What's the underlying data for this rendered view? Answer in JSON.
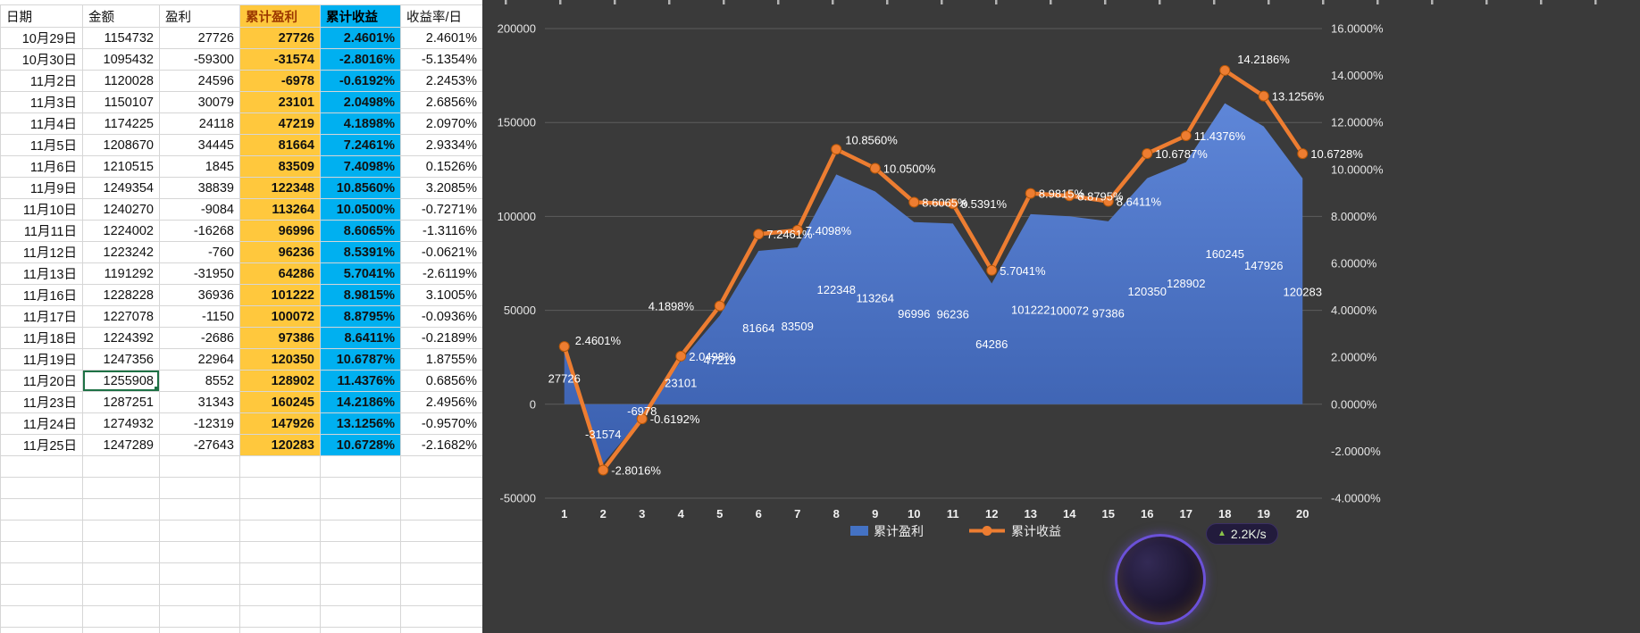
{
  "table": {
    "headers": [
      "日期",
      "金额",
      "盈利",
      "累计盈利",
      "累计收益",
      "收益率/日"
    ],
    "rows": [
      [
        "10月29日",
        "1154732",
        "27726",
        "27726",
        "2.4601%",
        "2.4601%"
      ],
      [
        "10月30日",
        "1095432",
        "-59300",
        "-31574",
        "-2.8016%",
        "-5.1354%"
      ],
      [
        "11月2日",
        "1120028",
        "24596",
        "-6978",
        "-0.6192%",
        "2.2453%"
      ],
      [
        "11月3日",
        "1150107",
        "30079",
        "23101",
        "2.0498%",
        "2.6856%"
      ],
      [
        "11月4日",
        "1174225",
        "24118",
        "47219",
        "4.1898%",
        "2.0970%"
      ],
      [
        "11月5日",
        "1208670",
        "34445",
        "81664",
        "7.2461%",
        "2.9334%"
      ],
      [
        "11月6日",
        "1210515",
        "1845",
        "83509",
        "7.4098%",
        "0.1526%"
      ],
      [
        "11月9日",
        "1249354",
        "38839",
        "122348",
        "10.8560%",
        "3.2085%"
      ],
      [
        "11月10日",
        "1240270",
        "-9084",
        "113264",
        "10.0500%",
        "-0.7271%"
      ],
      [
        "11月11日",
        "1224002",
        "-16268",
        "96996",
        "8.6065%",
        "-1.3116%"
      ],
      [
        "11月12日",
        "1223242",
        "-760",
        "96236",
        "8.5391%",
        "-0.0621%"
      ],
      [
        "11月13日",
        "1191292",
        "-31950",
        "64286",
        "5.7041%",
        "-2.6119%"
      ],
      [
        "11月16日",
        "1228228",
        "36936",
        "101222",
        "8.9815%",
        "3.1005%"
      ],
      [
        "11月17日",
        "1227078",
        "-1150",
        "100072",
        "8.8795%",
        "-0.0936%"
      ],
      [
        "11月18日",
        "1224392",
        "-2686",
        "97386",
        "8.6411%",
        "-0.2189%"
      ],
      [
        "11月19日",
        "1247356",
        "22964",
        "120350",
        "10.6787%",
        "1.8755%"
      ],
      [
        "11月20日",
        "1255908",
        "8552",
        "128902",
        "11.4376%",
        "0.6856%"
      ],
      [
        "11月23日",
        "1287251",
        "31343",
        "160245",
        "14.2186%",
        "2.4956%"
      ],
      [
        "11月24日",
        "1274932",
        "-12319",
        "147926",
        "13.1256%",
        "-0.9570%"
      ],
      [
        "11月25日",
        "1247289",
        "-27643",
        "120283",
        "10.6728%",
        "-2.1682%"
      ]
    ],
    "selected_cell": {
      "row": 16,
      "col": 1
    },
    "empty_rows": 9
  },
  "chart_data": {
    "type": "combo",
    "title": "",
    "categories": [
      "1",
      "2",
      "3",
      "4",
      "5",
      "6",
      "7",
      "8",
      "9",
      "10",
      "11",
      "12",
      "13",
      "14",
      "15",
      "16",
      "17",
      "18",
      "19",
      "20"
    ],
    "series": [
      {
        "name": "累计盈利",
        "type": "area",
        "axis": "left",
        "color": "#4472C4",
        "values": [
          27726,
          -31574,
          -6978,
          23101,
          47219,
          81664,
          83509,
          122348,
          113264,
          96996,
          96236,
          64286,
          101222,
          100072,
          97386,
          120350,
          128902,
          160245,
          147926,
          120283
        ]
      },
      {
        "name": "累计收益",
        "type": "line",
        "axis": "right",
        "color": "#ED7D31",
        "values": [
          2.4601,
          -2.8016,
          -0.6192,
          2.0498,
          4.1898,
          7.2461,
          7.4098,
          10.856,
          10.05,
          8.6065,
          8.5391,
          5.7041,
          8.9815,
          8.8795,
          8.6411,
          10.6787,
          11.4376,
          14.2186,
          13.1256,
          10.6728
        ]
      }
    ],
    "left_axis": {
      "min": -50000,
      "max": 200000,
      "step": 50000
    },
    "right_axis": {
      "min": -4,
      "max": 16,
      "step": 2,
      "format": "percent4"
    },
    "grid": "horizontal",
    "legend_position": "bottom",
    "background": "#3a3a3a"
  },
  "widget": {
    "speed": "2.2K/s"
  },
  "colors": {
    "area_blue": "#4472C4",
    "line_orange": "#ED7D31",
    "gold_column": "#FFC83D",
    "cyan_column": "#00B0F0",
    "chart_background": "#3a3a3a",
    "selection_green": "#1E7145"
  }
}
